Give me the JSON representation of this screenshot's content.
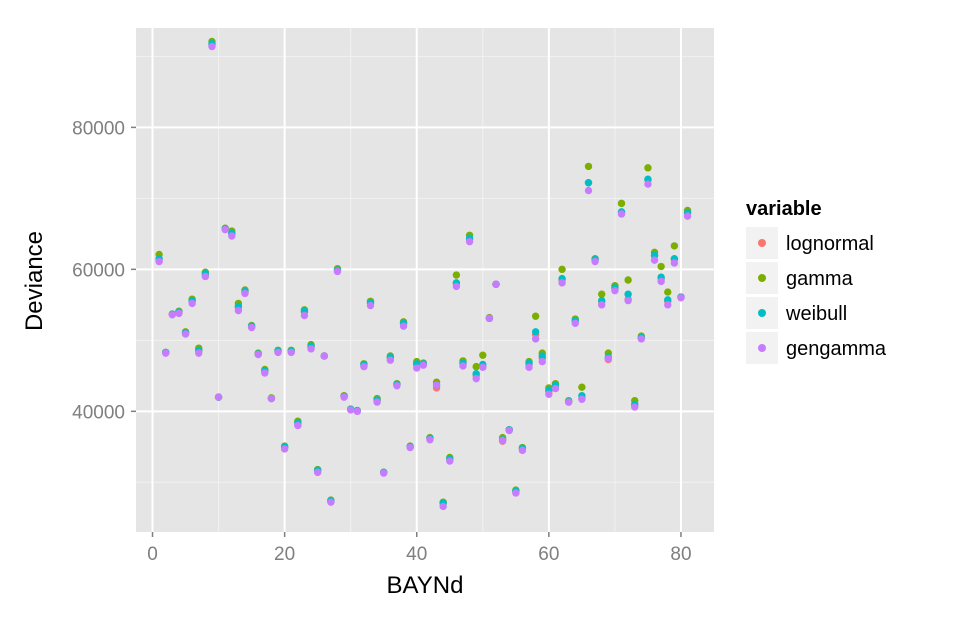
{
  "chart_data": {
    "type": "scatter",
    "xlabel": "BAYNd",
    "ylabel": "Deviance",
    "xlim": [
      -2.5,
      85
    ],
    "ylim": [
      23000,
      94000
    ],
    "x_ticks": [
      0,
      20,
      40,
      60,
      80
    ],
    "y_ticks": [
      40000,
      60000,
      80000
    ],
    "x_tick_labels": [
      "0",
      "20",
      "40",
      "60",
      "80"
    ],
    "y_tick_labels": [
      "40000",
      "60000",
      "80000"
    ],
    "grid": true,
    "legend": {
      "title": "variable",
      "placement": "right",
      "entries": [
        "lognormal",
        "gamma",
        "weibull",
        "gengamma"
      ]
    },
    "colors": {
      "lognormal": "#F8766D",
      "gamma": "#7CAE00",
      "weibull": "#00BFC4",
      "gengamma": "#C77CFF"
    },
    "x": [
      1,
      2,
      3,
      4,
      5,
      6,
      7,
      8,
      9,
      10,
      11,
      12,
      13,
      14,
      15,
      16,
      17,
      18,
      19,
      20,
      21,
      22,
      23,
      24,
      25,
      26,
      27,
      28,
      29,
      30,
      31,
      32,
      33,
      34,
      35,
      36,
      37,
      38,
      39,
      40,
      41,
      42,
      43,
      44,
      45,
      46,
      47,
      48,
      49,
      50,
      51,
      52,
      53,
      54,
      55,
      56,
      57,
      58,
      59,
      60,
      61,
      62,
      63,
      64,
      65,
      66,
      67,
      68,
      69,
      70,
      71,
      72,
      73,
      74,
      75,
      76,
      77,
      78,
      79,
      80,
      81
    ],
    "series": [
      {
        "name": "lognormal",
        "values": [
          61200,
          48300,
          53700,
          53900,
          51000,
          55500,
          48500,
          59200,
          91600,
          42000,
          65700,
          65000,
          54600,
          56800,
          51900,
          48100,
          45600,
          41800,
          48400,
          34900,
          48400,
          38200,
          54000,
          49100,
          31600,
          47800,
          27300,
          59900,
          42100,
          40300,
          40100,
          46500,
          55200,
          41500,
          31400,
          47500,
          43800,
          52300,
          35000,
          46500,
          46600,
          36200,
          43300,
          27000,
          33200,
          58000,
          46700,
          64200,
          45000,
          46300,
          53100,
          57900,
          35800,
          37400,
          28700,
          34700,
          46600,
          50800,
          47500,
          42800,
          43500,
          58500,
          41300,
          52700,
          41800,
          72200,
          61300,
          55400,
          47300,
          57300,
          68000,
          55800,
          40800,
          50300,
          72600,
          61900,
          58700,
          55500,
          61400,
          56100,
          67900
        ]
      },
      {
        "name": "gamma",
        "values": [
          62100,
          48300,
          53700,
          54100,
          51200,
          55800,
          48900,
          59600,
          92100,
          42000,
          65800,
          65400,
          55200,
          57100,
          52100,
          48200,
          45900,
          41900,
          48600,
          35100,
          48600,
          38600,
          54300,
          49400,
          31800,
          47800,
          27500,
          60100,
          42200,
          40300,
          40100,
          46700,
          55500,
          41800,
          31400,
          47800,
          43900,
          52600,
          35100,
          47000,
          46800,
          36300,
          44100,
          27200,
          33500,
          59200,
          47100,
          64800,
          46300,
          47900,
          53200,
          57900,
          36300,
          37400,
          28900,
          34900,
          47000,
          53400,
          48200,
          43300,
          43900,
          60000,
          41500,
          53000,
          43400,
          74500,
          61500,
          56500,
          48200,
          57700,
          69300,
          58500,
          41500,
          50600,
          74300,
          62400,
          60400,
          56800,
          63300,
          56100,
          68300
        ]
      },
      {
        "name": "weibull",
        "values": [
          61500,
          48300,
          53700,
          54000,
          51100,
          55600,
          48600,
          59400,
          91800,
          42000,
          65700,
          65100,
          54800,
          56900,
          52000,
          48100,
          45700,
          41800,
          48500,
          35000,
          48500,
          38400,
          54100,
          49200,
          31700,
          47800,
          27400,
          59900,
          42100,
          40300,
          40100,
          46600,
          55300,
          41600,
          31400,
          47600,
          43800,
          52400,
          35000,
          46700,
          46700,
          36200,
          43700,
          27100,
          33300,
          58100,
          46800,
          64400,
          45300,
          46600,
          53100,
          57900,
          36000,
          37400,
          28800,
          34800,
          46800,
          51200,
          47800,
          43000,
          43700,
          58700,
          41400,
          52800,
          42200,
          72200,
          61400,
          55600,
          47600,
          57400,
          68100,
          56500,
          41000,
          50400,
          72700,
          62000,
          58900,
          55700,
          61500,
          56100,
          68000
        ]
      },
      {
        "name": "gengamma",
        "values": [
          61100,
          48200,
          53600,
          53800,
          50900,
          55200,
          48200,
          59000,
          91400,
          42000,
          65600,
          64700,
          54200,
          56600,
          51800,
          48000,
          45400,
          41800,
          48300,
          34700,
          48300,
          38000,
          53500,
          48800,
          31400,
          47800,
          27200,
          59700,
          42000,
          40200,
          40000,
          46300,
          54900,
          41300,
          31300,
          47200,
          43600,
          52000,
          34900,
          46100,
          46500,
          36000,
          43700,
          26600,
          33000,
          57600,
          46400,
          63900,
          44600,
          46200,
          53100,
          57900,
          35900,
          37300,
          28500,
          34500,
          46200,
          50200,
          47000,
          42400,
          43200,
          58100,
          41300,
          52400,
          41700,
          71100,
          61100,
          55000,
          47400,
          57000,
          67800,
          55600,
          40600,
          50200,
          72000,
          61300,
          58300,
          55000,
          60900,
          56000,
          67500
        ]
      }
    ]
  }
}
